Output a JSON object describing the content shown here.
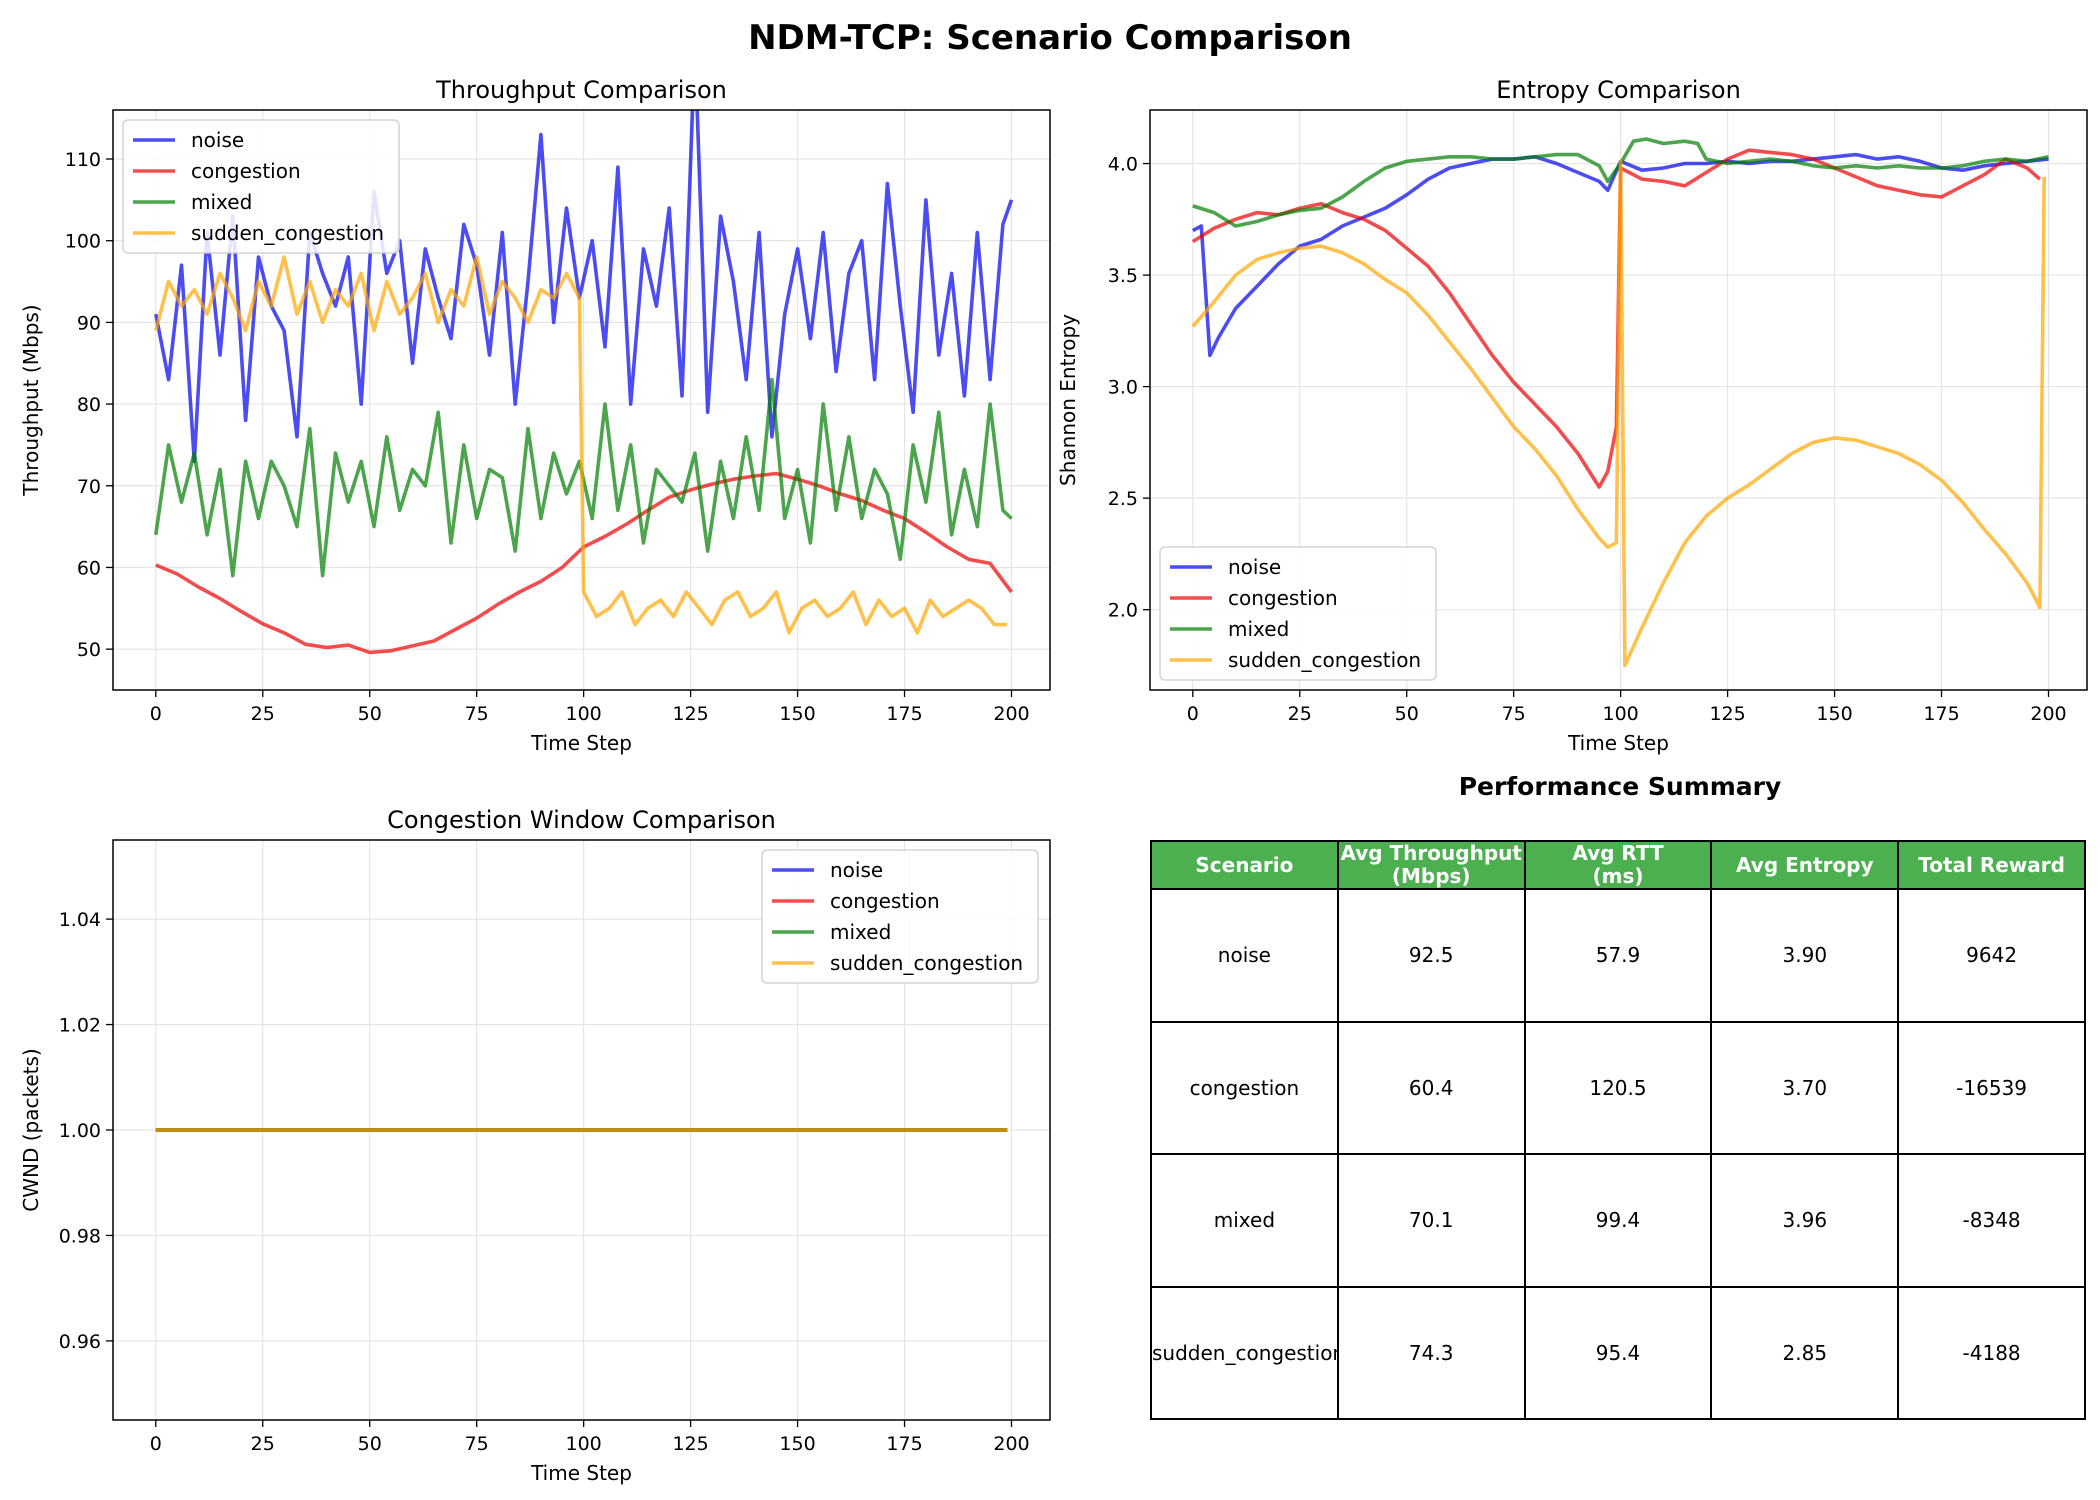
{
  "figure": {
    "title": "NDM-TCP: Scenario Comparison"
  },
  "colors": {
    "noise": "#0000ee",
    "congestion": "#ee0000",
    "mixed": "#007f00",
    "sudden_congestion": "#ffa500",
    "header": "#4caf50"
  },
  "chart_data": [
    {
      "type": "line",
      "title": "Throughput Comparison",
      "xlabel": "Time Step",
      "ylabel": "Throughput (Mbps)",
      "xlim": [
        -10,
        209
      ],
      "ylim": [
        45,
        116
      ],
      "xticks": [
        0,
        25,
        50,
        75,
        100,
        125,
        150,
        175,
        200
      ],
      "yticks": [
        50,
        60,
        70,
        80,
        90,
        100,
        110
      ],
      "grid": true,
      "legend": "top-left",
      "series": [
        {
          "name": "noise",
          "x": [
            0,
            3,
            6,
            9,
            12,
            15,
            18,
            21,
            24,
            27,
            30,
            33,
            36,
            39,
            42,
            45,
            48,
            51,
            54,
            57,
            60,
            63,
            66,
            69,
            72,
            75,
            78,
            81,
            84,
            87,
            90,
            93,
            96,
            99,
            102,
            105,
            108,
            111,
            114,
            117,
            120,
            123,
            126,
            129,
            132,
            135,
            138,
            141,
            144,
            147,
            150,
            153,
            156,
            159,
            162,
            165,
            168,
            171,
            174,
            177,
            180,
            183,
            186,
            189,
            192,
            195,
            198,
            200
          ],
          "y": [
            91,
            83,
            97,
            73,
            101,
            86,
            103,
            78,
            98,
            92,
            89,
            76,
            101,
            96,
            92,
            98,
            80,
            106,
            96,
            100,
            85,
            99,
            93,
            88,
            102,
            97,
            86,
            101,
            80,
            95,
            113,
            90,
            104,
            93,
            100,
            87,
            109,
            80,
            99,
            92,
            104,
            81,
            124,
            79,
            103,
            95,
            83,
            101,
            76,
            91,
            99,
            88,
            101,
            84,
            96,
            100,
            83,
            107,
            92,
            79,
            105,
            86,
            96,
            81,
            101,
            83,
            102,
            105
          ]
        },
        {
          "name": "congestion",
          "x": [
            0,
            5,
            10,
            15,
            20,
            25,
            30,
            35,
            40,
            45,
            50,
            55,
            60,
            65,
            70,
            75,
            80,
            85,
            90,
            95,
            100,
            105,
            110,
            115,
            120,
            125,
            130,
            135,
            140,
            145,
            150,
            155,
            160,
            165,
            170,
            175,
            180,
            185,
            190,
            195,
            200
          ],
          "y": [
            60.3,
            59.2,
            57.6,
            56.2,
            54.6,
            53.1,
            52.0,
            50.6,
            50.2,
            50.5,
            49.6,
            49.8,
            50.4,
            51.0,
            52.4,
            53.8,
            55.5,
            57.0,
            58.3,
            60.0,
            62.5,
            63.8,
            65.3,
            67.0,
            68.6,
            69.5,
            70.2,
            70.8,
            71.2,
            71.5,
            70.8,
            70.0,
            69.0,
            68.2,
            67.0,
            66.0,
            64.3,
            62.5,
            61.0,
            60.5,
            57.0
          ]
        },
        {
          "name": "mixed",
          "x": [
            0,
            3,
            6,
            9,
            12,
            15,
            18,
            21,
            24,
            27,
            30,
            33,
            36,
            39,
            42,
            45,
            48,
            51,
            54,
            57,
            60,
            63,
            66,
            69,
            72,
            75,
            78,
            81,
            84,
            87,
            90,
            93,
            96,
            99,
            102,
            105,
            108,
            111,
            114,
            117,
            120,
            123,
            126,
            129,
            132,
            135,
            138,
            141,
            144,
            147,
            150,
            153,
            156,
            159,
            162,
            165,
            168,
            171,
            174,
            177,
            180,
            183,
            186,
            189,
            192,
            195,
            198,
            200
          ],
          "y": [
            64,
            75,
            68,
            74,
            64,
            72,
            59,
            73,
            66,
            73,
            70,
            65,
            77,
            59,
            74,
            68,
            73,
            65,
            76,
            67,
            72,
            70,
            79,
            63,
            75,
            66,
            72,
            71,
            62,
            77,
            66,
            74,
            69,
            73,
            66,
            80,
            67,
            75,
            63,
            72,
            70,
            68,
            74,
            62,
            73,
            66,
            76,
            67,
            83,
            66,
            72,
            63,
            80,
            67,
            76,
            66,
            72,
            69,
            61,
            75,
            68,
            79,
            64,
            72,
            65,
            80,
            67,
            66
          ]
        },
        {
          "name": "sudden_congestion",
          "x": [
            0,
            3,
            6,
            9,
            12,
            15,
            18,
            21,
            24,
            27,
            30,
            33,
            36,
            39,
            42,
            45,
            48,
            51,
            54,
            57,
            60,
            63,
            66,
            69,
            72,
            75,
            78,
            81,
            84,
            87,
            90,
            93,
            96,
            99,
            100,
            103,
            106,
            109,
            112,
            115,
            118,
            121,
            124,
            127,
            130,
            133,
            136,
            139,
            142,
            145,
            148,
            151,
            154,
            157,
            160,
            163,
            166,
            169,
            172,
            175,
            178,
            181,
            184,
            187,
            190,
            193,
            196,
            199
          ],
          "y": [
            89,
            95,
            92,
            94,
            91,
            96,
            93,
            89,
            95,
            92,
            98,
            91,
            95,
            90,
            94,
            92,
            96,
            89,
            95,
            91,
            93,
            96,
            90,
            94,
            92,
            98,
            91,
            95,
            93,
            90,
            94,
            93,
            96,
            93,
            57,
            54,
            55,
            57,
            53,
            55,
            56,
            54,
            57,
            55,
            53,
            56,
            57,
            54,
            55,
            57,
            52,
            55,
            56,
            54,
            55,
            57,
            53,
            56,
            54,
            55,
            52,
            56,
            54,
            55,
            56,
            55,
            53,
            53
          ]
        }
      ]
    },
    {
      "type": "line",
      "title": "Entropy Comparison",
      "xlabel": "Time Step",
      "ylabel": "Shannon Entropy",
      "xlim": [
        -10,
        209
      ],
      "ylim": [
        1.64,
        4.24
      ],
      "xticks": [
        0,
        25,
        50,
        75,
        100,
        125,
        150,
        175,
        200
      ],
      "yticks": [
        2.0,
        2.5,
        3.0,
        3.5,
        4.0
      ],
      "grid": true,
      "legend": "bottom-left",
      "series": [
        {
          "name": "noise",
          "x": [
            0,
            2,
            4,
            6,
            10,
            15,
            20,
            25,
            30,
            35,
            40,
            45,
            50,
            55,
            60,
            65,
            70,
            75,
            80,
            85,
            90,
            95,
            97,
            100,
            105,
            110,
            115,
            120,
            125,
            130,
            135,
            140,
            145,
            150,
            155,
            160,
            165,
            170,
            175,
            180,
            185,
            190,
            195,
            200
          ],
          "y": [
            3.7,
            3.72,
            3.14,
            3.22,
            3.35,
            3.45,
            3.55,
            3.63,
            3.66,
            3.72,
            3.76,
            3.8,
            3.86,
            3.93,
            3.98,
            4.0,
            4.02,
            4.02,
            4.03,
            4.0,
            3.96,
            3.92,
            3.88,
            4.01,
            3.97,
            3.98,
            4.0,
            4.0,
            4.01,
            4.0,
            4.01,
            4.01,
            4.02,
            4.03,
            4.04,
            4.02,
            4.03,
            4.01,
            3.98,
            3.97,
            3.99,
            4.0,
            4.01,
            4.02
          ]
        },
        {
          "name": "congestion",
          "x": [
            0,
            5,
            10,
            15,
            20,
            25,
            30,
            35,
            40,
            45,
            50,
            55,
            60,
            65,
            70,
            75,
            80,
            85,
            90,
            95,
            97,
            99,
            100,
            105,
            110,
            115,
            120,
            125,
            130,
            135,
            140,
            145,
            150,
            155,
            160,
            165,
            170,
            175,
            180,
            185,
            190,
            195,
            198
          ],
          "y": [
            3.65,
            3.71,
            3.75,
            3.78,
            3.77,
            3.8,
            3.82,
            3.78,
            3.75,
            3.7,
            3.62,
            3.54,
            3.42,
            3.28,
            3.14,
            3.02,
            2.92,
            2.82,
            2.7,
            2.55,
            2.62,
            2.82,
            3.98,
            3.93,
            3.92,
            3.9,
            3.96,
            4.02,
            4.06,
            4.05,
            4.04,
            4.02,
            3.98,
            3.94,
            3.9,
            3.88,
            3.86,
            3.85,
            3.9,
            3.95,
            4.02,
            3.98,
            3.93
          ]
        },
        {
          "name": "mixed",
          "x": [
            0,
            5,
            10,
            15,
            20,
            25,
            30,
            35,
            40,
            45,
            50,
            55,
            60,
            65,
            70,
            75,
            80,
            85,
            90,
            95,
            97,
            100,
            103,
            106,
            110,
            115,
            118,
            120,
            125,
            130,
            135,
            140,
            145,
            150,
            155,
            160,
            165,
            170,
            175,
            180,
            185,
            190,
            195,
            200
          ],
          "y": [
            3.81,
            3.78,
            3.72,
            3.74,
            3.77,
            3.79,
            3.8,
            3.85,
            3.92,
            3.98,
            4.01,
            4.02,
            4.03,
            4.03,
            4.02,
            4.02,
            4.03,
            4.04,
            4.04,
            3.99,
            3.92,
            4.0,
            4.1,
            4.11,
            4.09,
            4.1,
            4.09,
            4.02,
            4.0,
            4.01,
            4.02,
            4.01,
            3.99,
            3.98,
            3.99,
            3.98,
            3.99,
            3.98,
            3.98,
            3.99,
            4.01,
            4.02,
            4.01,
            4.03
          ]
        },
        {
          "name": "sudden_congestion",
          "x": [
            0,
            5,
            10,
            15,
            20,
            25,
            30,
            35,
            40,
            45,
            50,
            55,
            60,
            65,
            70,
            75,
            80,
            85,
            90,
            95,
            97,
            99,
            100,
            101,
            105,
            110,
            115,
            120,
            125,
            130,
            135,
            140,
            145,
            150,
            155,
            160,
            165,
            170,
            175,
            180,
            185,
            190,
            195,
            198,
            199
          ],
          "y": [
            3.27,
            3.38,
            3.5,
            3.57,
            3.6,
            3.62,
            3.63,
            3.6,
            3.55,
            3.48,
            3.42,
            3.32,
            3.2,
            3.08,
            2.95,
            2.82,
            2.72,
            2.6,
            2.45,
            2.32,
            2.28,
            2.3,
            4.01,
            1.75,
            1.92,
            2.12,
            2.3,
            2.42,
            2.5,
            2.56,
            2.63,
            2.7,
            2.75,
            2.77,
            2.76,
            2.73,
            2.7,
            2.65,
            2.58,
            2.48,
            2.36,
            2.25,
            2.12,
            2.01,
            3.94
          ]
        }
      ]
    },
    {
      "type": "line",
      "title": "Congestion Window Comparison",
      "xlabel": "Time Step",
      "ylabel": "CWND (packets)",
      "xlim": [
        -10,
        209
      ],
      "ylim": [
        0.945,
        1.055
      ],
      "xticks": [
        0,
        25,
        50,
        75,
        100,
        125,
        150,
        175,
        200
      ],
      "yticks": [
        0.96,
        0.98,
        1.0,
        1.02,
        1.04
      ],
      "grid": true,
      "legend": "top-right",
      "series": [
        {
          "name": "noise",
          "x": [
            0,
            199
          ],
          "y": [
            1,
            1
          ]
        },
        {
          "name": "congestion",
          "x": [
            0,
            199
          ],
          "y": [
            1,
            1
          ]
        },
        {
          "name": "mixed",
          "x": [
            0,
            199
          ],
          "y": [
            1,
            1
          ]
        },
        {
          "name": "sudden_congestion",
          "x": [
            0,
            199
          ],
          "y": [
            1,
            1
          ]
        }
      ]
    },
    {
      "type": "table",
      "title": "Performance Summary",
      "columns": [
        "Scenario",
        "Avg Throughput\n(Mbps)",
        "Avg RTT\n(ms)",
        "Avg Entropy",
        "Total Reward"
      ],
      "rows": [
        [
          "noise",
          "92.5",
          "57.9",
          "3.90",
          "9642"
        ],
        [
          "congestion",
          "60.4",
          "120.5",
          "3.70",
          "-16539"
        ],
        [
          "mixed",
          "70.1",
          "99.4",
          "3.96",
          "-8348"
        ],
        [
          "sudden_congestion",
          "74.3",
          "95.4",
          "2.85",
          "-4188"
        ]
      ]
    }
  ]
}
